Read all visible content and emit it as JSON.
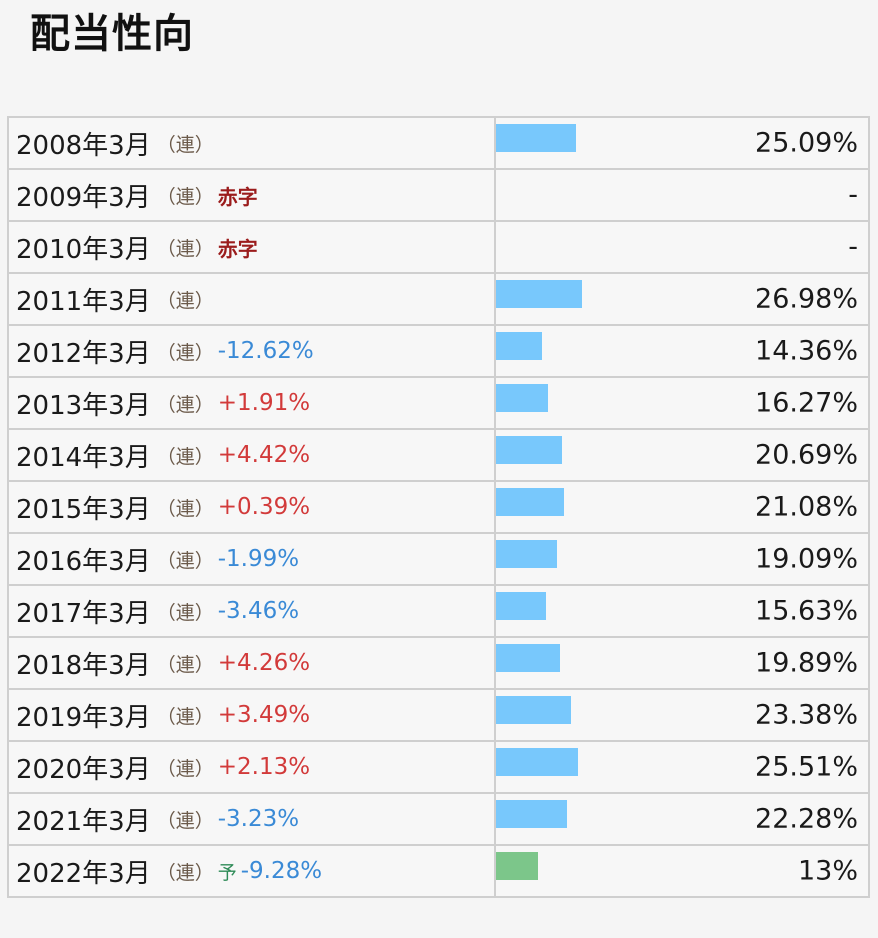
{
  "title": "配当性向",
  "colors": {
    "bar": "#78c8fc",
    "bar_forecast": "#7cc68a",
    "change_up": "#d23a3a",
    "change_down": "#3a8ad6",
    "deficit": "#9b1c1c",
    "forecast": "#2e8b57"
  },
  "rows": [
    {
      "fy": "2008年3月",
      "consol": "（連）",
      "change": "",
      "change_dir": "",
      "deficit": "",
      "forecast": "",
      "value": "25.09%",
      "ratio": 25.09
    },
    {
      "fy": "2009年3月",
      "consol": "（連）",
      "change": "",
      "change_dir": "",
      "deficit": "赤字",
      "forecast": "",
      "value": "-",
      "ratio": 0
    },
    {
      "fy": "2010年3月",
      "consol": "（連）",
      "change": "",
      "change_dir": "",
      "deficit": "赤字",
      "forecast": "",
      "value": "-",
      "ratio": 0
    },
    {
      "fy": "2011年3月",
      "consol": "（連）",
      "change": "",
      "change_dir": "",
      "deficit": "",
      "forecast": "",
      "value": "26.98%",
      "ratio": 26.98
    },
    {
      "fy": "2012年3月",
      "consol": "（連）",
      "change": "-12.62%",
      "change_dir": "down",
      "deficit": "",
      "forecast": "",
      "value": "14.36%",
      "ratio": 14.36
    },
    {
      "fy": "2013年3月",
      "consol": "（連）",
      "change": "+1.91%",
      "change_dir": "up",
      "deficit": "",
      "forecast": "",
      "value": "16.27%",
      "ratio": 16.27
    },
    {
      "fy": "2014年3月",
      "consol": "（連）",
      "change": "+4.42%",
      "change_dir": "up",
      "deficit": "",
      "forecast": "",
      "value": "20.69%",
      "ratio": 20.69
    },
    {
      "fy": "2015年3月",
      "consol": "（連）",
      "change": "+0.39%",
      "change_dir": "up",
      "deficit": "",
      "forecast": "",
      "value": "21.08%",
      "ratio": 21.08
    },
    {
      "fy": "2016年3月",
      "consol": "（連）",
      "change": "-1.99%",
      "change_dir": "down",
      "deficit": "",
      "forecast": "",
      "value": "19.09%",
      "ratio": 19.09
    },
    {
      "fy": "2017年3月",
      "consol": "（連）",
      "change": "-3.46%",
      "change_dir": "down",
      "deficit": "",
      "forecast": "",
      "value": "15.63%",
      "ratio": 15.63
    },
    {
      "fy": "2018年3月",
      "consol": "（連）",
      "change": "+4.26%",
      "change_dir": "up",
      "deficit": "",
      "forecast": "",
      "value": "19.89%",
      "ratio": 19.89
    },
    {
      "fy": "2019年3月",
      "consol": "（連）",
      "change": "+3.49%",
      "change_dir": "up",
      "deficit": "",
      "forecast": "",
      "value": "23.38%",
      "ratio": 23.38
    },
    {
      "fy": "2020年3月",
      "consol": "（連）",
      "change": "+2.13%",
      "change_dir": "up",
      "deficit": "",
      "forecast": "",
      "value": "25.51%",
      "ratio": 25.51
    },
    {
      "fy": "2021年3月",
      "consol": "（連）",
      "change": "-3.23%",
      "change_dir": "down",
      "deficit": "",
      "forecast": "",
      "value": "22.28%",
      "ratio": 22.28
    },
    {
      "fy": "2022年3月",
      "consol": "（連）",
      "change": "-9.28%",
      "change_dir": "down",
      "deficit": "",
      "forecast": "予",
      "value": "13%",
      "ratio": 13
    }
  ]
}
